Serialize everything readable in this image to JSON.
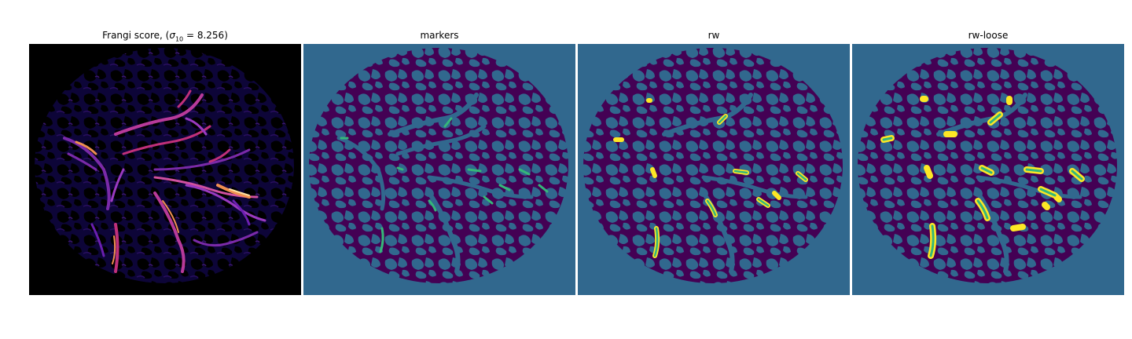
{
  "panels": [
    {
      "id": "frangi",
      "title_text": "Frangi score, (",
      "title_symbol": "σ",
      "title_sub": "10",
      "title_rest": " = 8.256)"
    },
    {
      "id": "markers",
      "title": "markers"
    },
    {
      "id": "rw",
      "title": "rw"
    },
    {
      "id": "rw-loose",
      "title": "rw-loose"
    }
  ],
  "colors": {
    "background_black": "#000000",
    "viridis_dark_purple": "#440154",
    "viridis_blue": "#31688e",
    "viridis_teal": "#35b779",
    "viridis_yellow": "#fde725",
    "inferno_purple": "#6a1fb0",
    "inferno_magenta": "#c0307a",
    "inferno_orange": "#f09050",
    "inferno_light": "#fde0a0"
  }
}
